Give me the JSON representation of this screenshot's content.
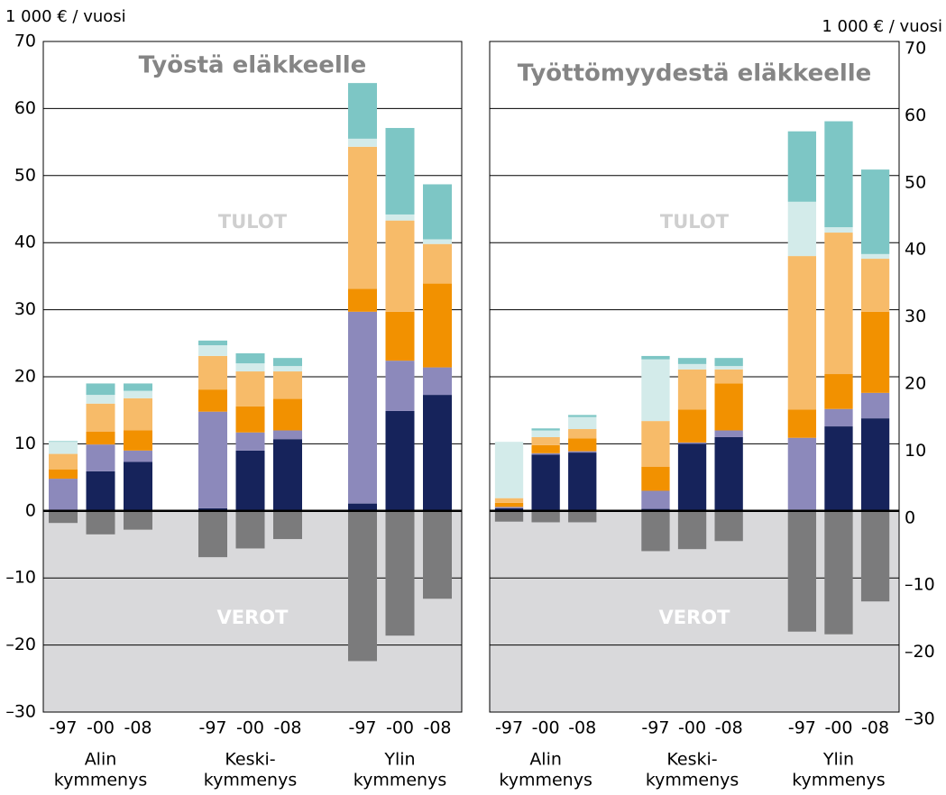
{
  "chart_data": [
    {
      "type": "bar",
      "stacked": true,
      "title": "Työstä eläkkeelle",
      "y_label": "1 000 € / vuosi",
      "axis_side": "left",
      "annotations": [
        "TULOT",
        "VEROT"
      ],
      "categories": [
        "-97",
        "-00",
        "-08",
        "-97",
        "-00",
        "-08",
        "-97",
        "-00",
        "-08"
      ],
      "groups": [
        [
          "Alin",
          "kymmenys"
        ],
        [
          "Keski-",
          "kymmenys"
        ],
        [
          "Ylin",
          "kymmenys"
        ]
      ],
      "ylim": [
        -30,
        70
      ],
      "yticks": [
        {
          "value": -30,
          "label": "–30"
        },
        {
          "value": -20,
          "label": "–20"
        },
        {
          "value": -10,
          "label": "–10"
        },
        0,
        10,
        20,
        30,
        40,
        50,
        60,
        70
      ],
      "series": [
        {
          "color": "#16235b",
          "values": [
            0,
            5.9,
            7.3,
            0.4,
            9.0,
            10.7,
            1.1,
            14.9,
            17.3
          ]
        },
        {
          "color": "#8c89bb",
          "values": [
            4.8,
            4.0,
            1.7,
            14.4,
            2.7,
            1.3,
            28.6,
            7.5,
            4.1
          ]
        },
        {
          "color": "#f29100",
          "values": [
            1.4,
            1.9,
            3.0,
            3.3,
            3.9,
            4.7,
            3.4,
            7.3,
            12.5
          ]
        },
        {
          "color": "#f7bb69",
          "values": [
            2.3,
            4.2,
            4.8,
            5.0,
            5.2,
            4.1,
            21.2,
            13.6,
            5.9
          ]
        },
        {
          "color": "#d3ebea",
          "values": [
            1.8,
            1.3,
            1.1,
            1.6,
            1.2,
            0.8,
            1.2,
            0.9,
            0.7
          ]
        },
        {
          "color": "#7dc6c5",
          "values": [
            0.1,
            1.7,
            1.1,
            0.7,
            1.5,
            1.2,
            8.3,
            12.9,
            8.2
          ]
        },
        {
          "color": "#7b7b7c",
          "values": [
            -1.8,
            -3.5,
            -2.8,
            -6.9,
            -5.6,
            -4.2,
            -22.4,
            -18.6,
            -13.1
          ]
        }
      ]
    },
    {
      "type": "bar",
      "stacked": true,
      "title": "Työttömyydestä eläkkeelle",
      "y_label": "1 000 € / vuosi",
      "axis_side": "right",
      "annotations": [
        "TULOT",
        "VEROT"
      ],
      "categories": [
        "-97",
        "-00",
        "-08",
        "-97",
        "-00",
        "-08",
        "-97",
        "-00",
        "-08"
      ],
      "groups": [
        [
          "Alin",
          "kymmenys"
        ],
        [
          "Keski-",
          "kymmenys"
        ],
        [
          "Ylin",
          "kymmenys"
        ]
      ],
      "ylim": [
        -30,
        70
      ],
      "yticks": [
        {
          "value": -30,
          "label": "–30"
        },
        {
          "value": -20,
          "label": "–20"
        },
        {
          "value": -10,
          "label": "–10"
        },
        0,
        10,
        20,
        30,
        40,
        50,
        60,
        70
      ],
      "series": [
        {
          "color": "#16235b",
          "values": [
            0.4,
            8.4,
            8.7,
            0.3,
            10.0,
            11.0,
            0.2,
            12.6,
            13.8
          ]
        },
        {
          "color": "#8c89bb",
          "values": [
            0.2,
            0.2,
            0.2,
            2.7,
            0.2,
            1.0,
            10.7,
            2.6,
            3.8
          ]
        },
        {
          "color": "#f29100",
          "values": [
            0.6,
            1.2,
            1.9,
            3.6,
            4.9,
            7.0,
            4.2,
            5.2,
            12.1
          ]
        },
        {
          "color": "#f7bb69",
          "values": [
            0.7,
            1.2,
            1.4,
            6.8,
            6.0,
            2.1,
            22.9,
            21.1,
            7.9
          ]
        },
        {
          "color": "#d3ebea",
          "values": [
            8.4,
            1.0,
            1.8,
            9.2,
            0.8,
            0.5,
            8.1,
            0.8,
            0.7
          ]
        },
        {
          "color": "#7dc6c5",
          "values": [
            0,
            0.3,
            0.3,
            0.5,
            0.9,
            1.2,
            10.5,
            15.8,
            12.6
          ]
        },
        {
          "color": "#7b7b7c",
          "values": [
            -1.6,
            -1.7,
            -1.7,
            -6.0,
            -5.7,
            -4.5,
            -18.0,
            -18.4,
            -13.5
          ]
        }
      ]
    }
  ]
}
